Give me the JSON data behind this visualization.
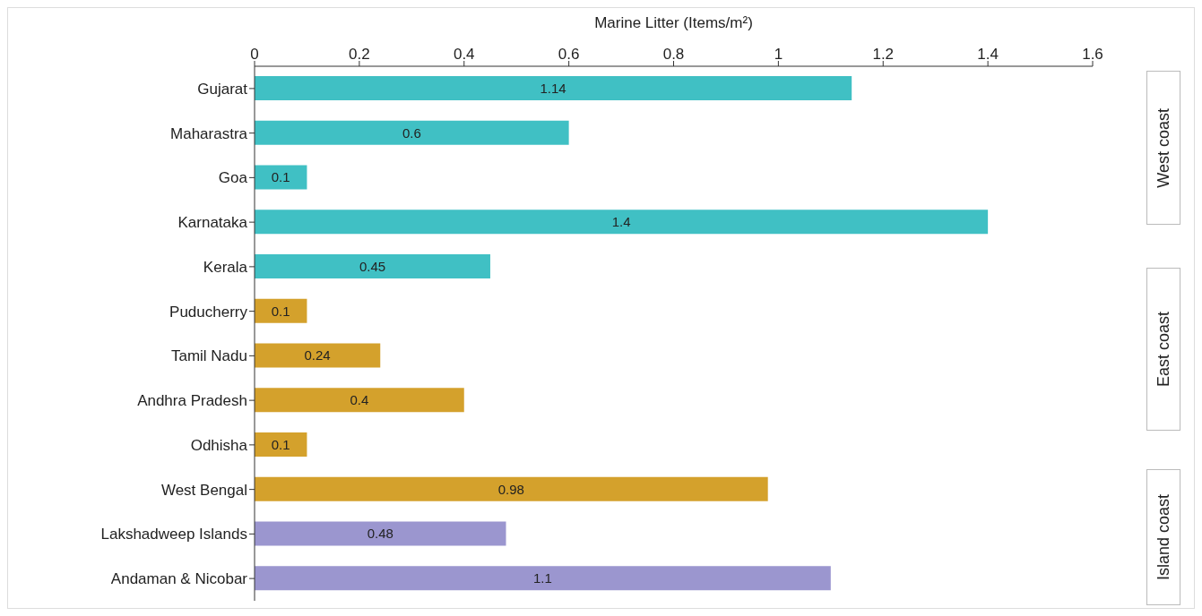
{
  "chart_data": {
    "type": "bar",
    "orientation": "horizontal",
    "xlabel": "Marine Litter (Items/m²)",
    "categories": [
      "Gujarat",
      "Maharastra",
      "Goa",
      "Karnataka",
      "Kerala",
      "Puducherry",
      "Tamil Nadu",
      "Andhra Pradesh",
      "Odhisha",
      "West Bengal",
      "Lakshadweep Islands",
      "Andaman & Nicobar"
    ],
    "values": [
      1.14,
      0.6,
      0.1,
      1.4,
      0.45,
      0.1,
      0.24,
      0.4,
      0.1,
      0.98,
      0.48,
      1.1
    ],
    "colors": [
      "#40c0c4",
      "#40c0c4",
      "#40c0c4",
      "#40c0c4",
      "#40c0c4",
      "#d4a12c",
      "#d4a12c",
      "#d4a12c",
      "#d4a12c",
      "#d4a12c",
      "#9b96cf",
      "#9b96cf"
    ],
    "xlim": [
      0,
      1.6
    ],
    "xticks": [
      0,
      0.2,
      0.4,
      0.6,
      0.8,
      1,
      1.2,
      1.4,
      1.6
    ],
    "data_labels": true,
    "annotations": [
      "West coast",
      "East coast",
      "Island coast"
    ]
  }
}
